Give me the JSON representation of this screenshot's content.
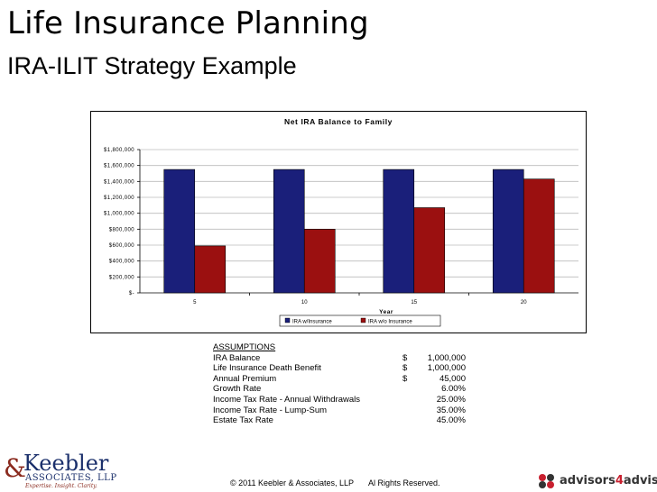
{
  "slide": {
    "title": "Life Insurance Planning",
    "subtitle": "IRA-ILIT Strategy Example"
  },
  "chart_data": {
    "type": "bar",
    "title": "Net IRA Balance to Family",
    "xlabel": "Year",
    "ylabel": "",
    "categories": [
      "5",
      "10",
      "15",
      "20"
    ],
    "series": [
      {
        "name": "IRA w/Insurance",
        "color": "#1a1f7a",
        "values": [
          1550000,
          1550000,
          1550000,
          1550000
        ]
      },
      {
        "name": "IRA w/o Insurance",
        "color": "#9b1010",
        "values": [
          590000,
          800000,
          1070000,
          1430000
        ]
      }
    ],
    "ylim": [
      0,
      1800000
    ],
    "yticks": [
      0,
      200000,
      400000,
      600000,
      800000,
      1000000,
      1200000,
      1400000,
      1600000,
      1800000
    ],
    "ytick_labels": [
      "$-",
      "$200,000",
      "$400,000",
      "$600,000",
      "$800,000",
      "$1,000,000",
      "$1,200,000",
      "$1,400,000",
      "$1,600,000",
      "$1,800,000"
    ],
    "grid": true,
    "legend": "bottom"
  },
  "assumptions": {
    "heading": "ASSUMPTIONS",
    "rows": [
      {
        "label": "IRA Balance",
        "currency": "$",
        "value": "1,000,000"
      },
      {
        "label": "Life Insurance Death Benefit",
        "currency": "$",
        "value": "1,000,000"
      },
      {
        "label": "Annual Premium",
        "currency": "$",
        "value": "45,000"
      },
      {
        "label": "Growth Rate",
        "currency": "",
        "value": "6.00%"
      },
      {
        "label": "Income Tax Rate - Annual Withdrawals",
        "currency": "",
        "value": "25.00%"
      },
      {
        "label": "Income Tax Rate - Lump-Sum",
        "currency": "",
        "value": "35.00%"
      },
      {
        "label": "Estate Tax Rate",
        "currency": "",
        "value": "45.00%"
      }
    ]
  },
  "footer": {
    "copyright": "© 2011 Keebler & Associates, LLP",
    "rights": "Al Rights Reserved."
  },
  "logos": {
    "keebler_amp": "&",
    "keebler_name": "Keebler",
    "keebler_assoc": "ASSOCIATES, LLP",
    "keebler_tagline": "Expertise. Insight. Clarity.",
    "a4a_prefix": "advisors",
    "a4a_four": "4",
    "a4a_suffix": "advisors"
  }
}
